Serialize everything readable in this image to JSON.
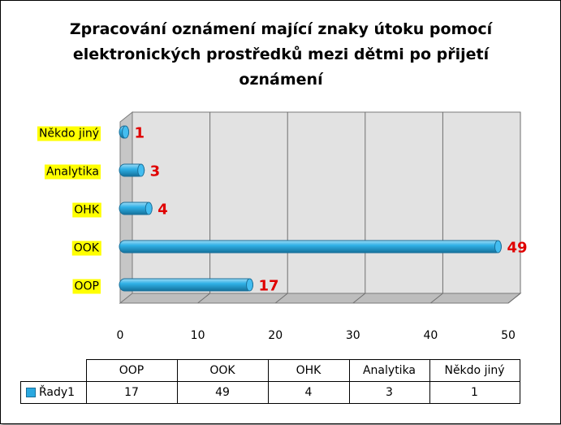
{
  "chart_data": {
    "type": "bar",
    "orientation": "horizontal",
    "title": "Zpracování oznámení mající znaky útoku pomocí elektronických prostředků mezi dětmi po přijetí oznámení",
    "categories": [
      "Někdo jiný",
      "Analytika",
      "OHK",
      "OOK",
      "OOP"
    ],
    "series": [
      {
        "name": "Řady1",
        "values": [
          1,
          3,
          4,
          49,
          17
        ]
      }
    ],
    "xlim": [
      0,
      50
    ],
    "xticks": [
      0,
      10,
      20,
      30,
      40,
      50
    ],
    "grid": "vertical",
    "bar_color": "#29a8e0",
    "label_color": "#e00000",
    "category_highlight": "#ffff00"
  },
  "data_table": {
    "columns": [
      "OOP",
      "OOK",
      "OHK",
      "Analytika",
      "Někdo jiný"
    ],
    "series_label": "Řady1",
    "values": [
      "17",
      "49",
      "4",
      "3",
      "1"
    ]
  }
}
